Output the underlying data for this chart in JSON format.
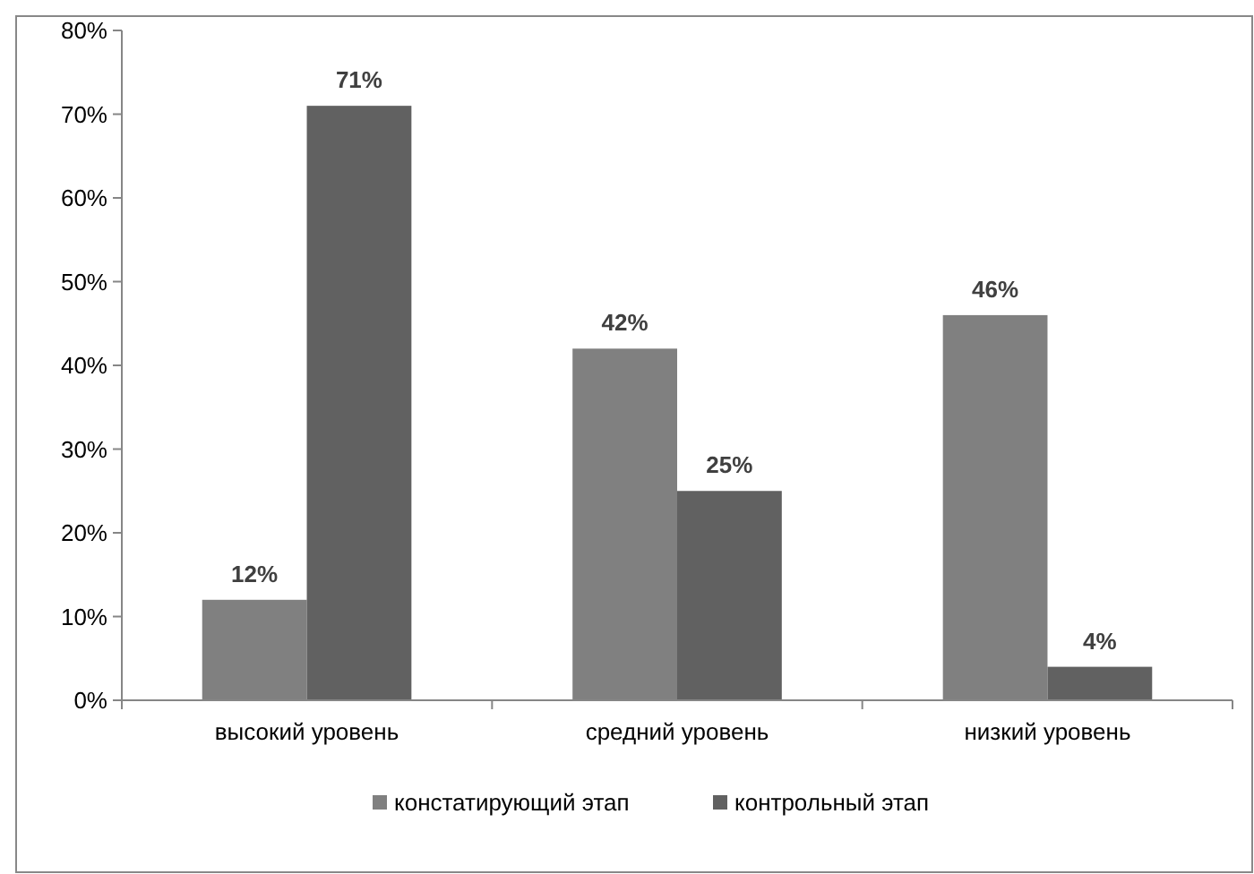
{
  "chart_data": {
    "type": "bar",
    "categories": [
      "высокий уровень",
      "средний уровень",
      "низкий уровень"
    ],
    "series": [
      {
        "name": "констатирующий этап",
        "color": "#808080",
        "values": [
          12,
          42,
          46
        ],
        "value_labels": [
          "12%",
          "42%",
          "46%"
        ]
      },
      {
        "name": "контрольный этап",
        "color": "#616161",
        "values": [
          71,
          25,
          4
        ],
        "value_labels": [
          "71%",
          "25%",
          "4%"
        ]
      }
    ],
    "ylim": [
      0,
      80
    ],
    "yticks": [
      {
        "value": 0,
        "label": "0%"
      },
      {
        "value": 10,
        "label": "10%"
      },
      {
        "value": 20,
        "label": "20%"
      },
      {
        "value": 30,
        "label": "30%"
      },
      {
        "value": 40,
        "label": "40%"
      },
      {
        "value": 50,
        "label": "50%"
      },
      {
        "value": 60,
        "label": "60%"
      },
      {
        "value": 70,
        "label": "70%"
      },
      {
        "value": 80,
        "label": "80%"
      }
    ],
    "grid": false,
    "legend": "bottom"
  }
}
